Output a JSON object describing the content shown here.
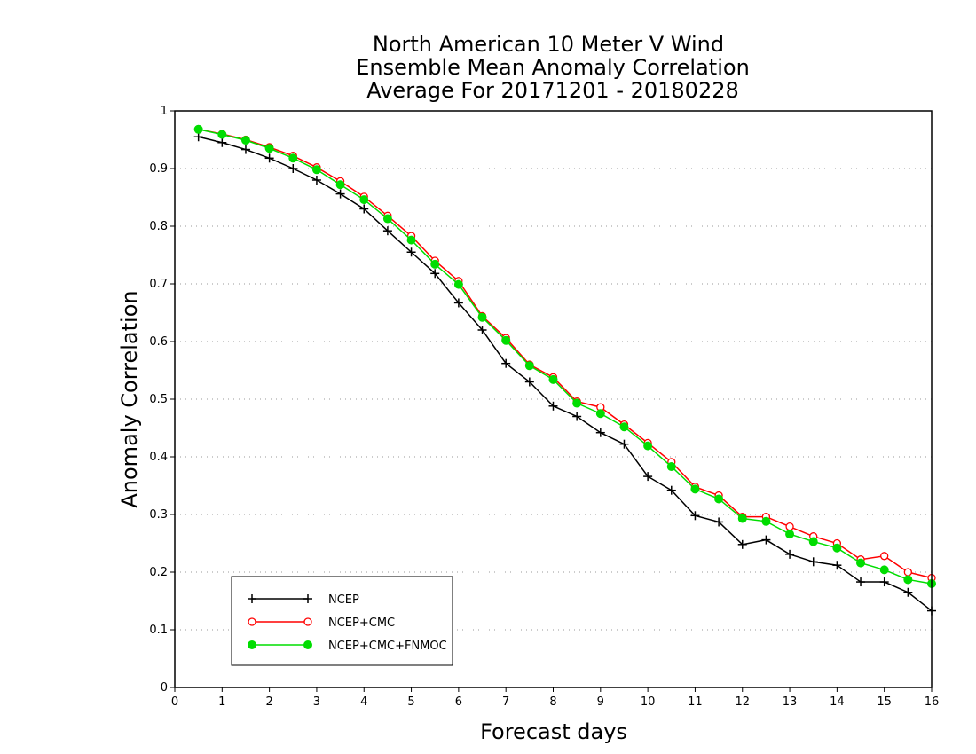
{
  "chart_data": {
    "type": "line",
    "title": [
      "North American 10 Meter V Wind",
      "Ensemble Mean Anomaly Correlation",
      "Average For 20171201 - 20180228"
    ],
    "xlabel": "Forecast days",
    "ylabel": "Anomaly Correlation",
    "xlim": [
      0,
      16
    ],
    "ylim": [
      0,
      1
    ],
    "x_ticks": [
      "0",
      "1",
      "2",
      "3",
      "4",
      "5",
      "6",
      "7",
      "8",
      "9",
      "10",
      "11",
      "12",
      "13",
      "14",
      "15",
      "16"
    ],
    "y_ticks": [
      "0",
      "0.1",
      "0.2",
      "0.3",
      "0.4",
      "0.5",
      "0.6",
      "0.7",
      "0.8",
      "0.9",
      "1"
    ],
    "grid": "horizontal-dotted",
    "legend_position": "bottom-left",
    "x": [
      0.5,
      1,
      1.5,
      2,
      2.5,
      3,
      3.5,
      4,
      4.5,
      5,
      5.5,
      6,
      6.5,
      7,
      7.5,
      8,
      8.5,
      9,
      9.5,
      10,
      10.5,
      11,
      11.5,
      12,
      12.5,
      13,
      13.5,
      14,
      14.5,
      15,
      15.5,
      16
    ],
    "series": [
      {
        "name": "NCEP",
        "color": "#000000",
        "marker": "plus",
        "values": [
          0.955,
          0.945,
          0.933,
          0.918,
          0.9,
          0.88,
          0.856,
          0.83,
          0.792,
          0.755,
          0.718,
          0.667,
          0.62,
          0.562,
          0.53,
          0.488,
          0.47,
          0.442,
          0.422,
          0.366,
          0.342,
          0.298,
          0.287,
          0.248,
          0.256,
          0.231,
          0.218,
          0.212,
          0.183,
          0.183,
          0.165,
          0.133
        ]
      },
      {
        "name": "NCEP+CMC",
        "color": "#ff0000",
        "marker": "open-circle",
        "values": [
          0.968,
          0.96,
          0.95,
          0.937,
          0.922,
          0.902,
          0.878,
          0.851,
          0.818,
          0.783,
          0.74,
          0.705,
          0.644,
          0.606,
          0.56,
          0.538,
          0.496,
          0.486,
          0.456,
          0.424,
          0.391,
          0.348,
          0.333,
          0.296,
          0.296,
          0.279,
          0.262,
          0.25,
          0.222,
          0.228,
          0.2,
          0.19
        ]
      },
      {
        "name": "NCEP+CMC+FNMOC",
        "color": "#00dd00",
        "marker": "filled-circle",
        "values": [
          0.968,
          0.959,
          0.949,
          0.935,
          0.918,
          0.898,
          0.872,
          0.846,
          0.813,
          0.776,
          0.734,
          0.699,
          0.642,
          0.602,
          0.558,
          0.534,
          0.493,
          0.475,
          0.452,
          0.419,
          0.383,
          0.344,
          0.327,
          0.293,
          0.288,
          0.266,
          0.253,
          0.242,
          0.216,
          0.204,
          0.187,
          0.18
        ]
      }
    ]
  }
}
